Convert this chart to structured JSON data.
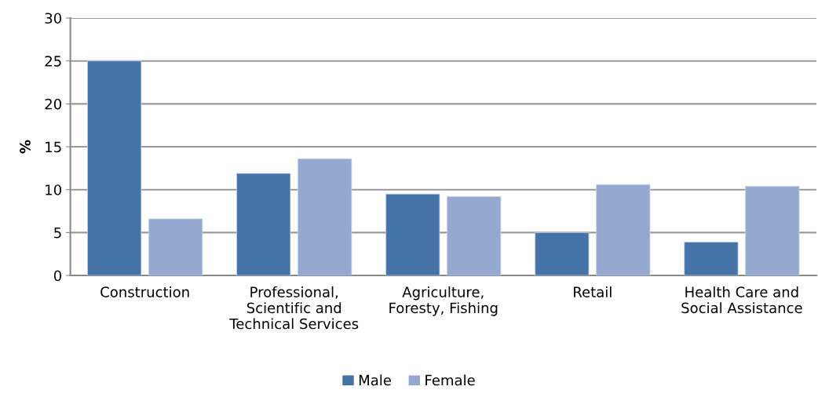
{
  "chart_data": {
    "type": "bar",
    "ylabel": "%",
    "categories": [
      "Construction",
      "Professional,\nScientific and\nTechnical Services",
      "Agriculture,\nForesty, Fishing",
      "Retail",
      "Health Care and\nSocial Assistance"
    ],
    "series": [
      {
        "name": "Male",
        "color": "#4673a7",
        "values": [
          25.0,
          11.9,
          9.5,
          5.0,
          3.9
        ]
      },
      {
        "name": "Female",
        "color": "#95a9d0",
        "values": [
          6.6,
          13.6,
          9.2,
          10.6,
          10.4
        ]
      }
    ],
    "ylim": [
      0,
      30
    ],
    "yticks": [
      0,
      5,
      10,
      15,
      20,
      25,
      30
    ],
    "grid": "y",
    "legend": "bottom"
  }
}
